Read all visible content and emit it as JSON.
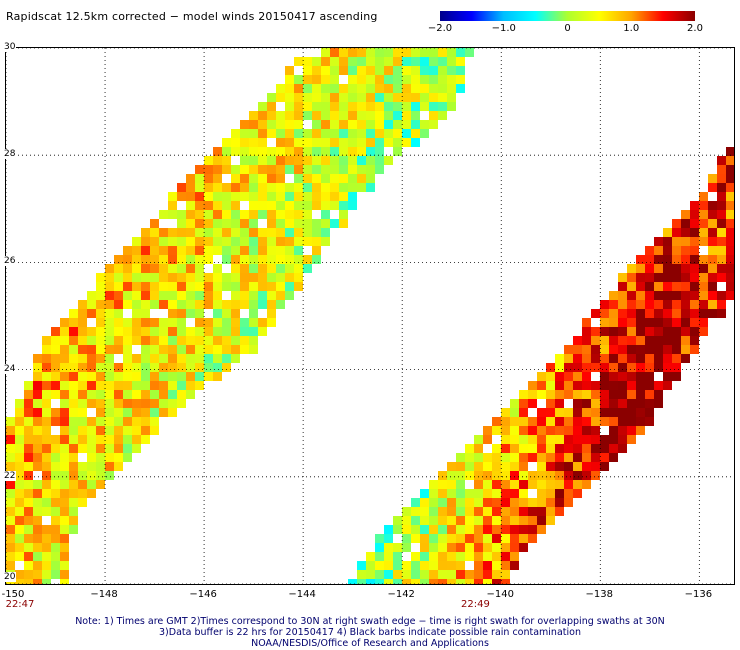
{
  "title": "Rapidscat 12.5km corrected − model winds 20150417 ascending",
  "colorbar": {
    "labels": [
      "−2.0",
      "−1.0",
      "0",
      "1.0",
      "2.0"
    ],
    "values": [
      -2.0,
      -1.0,
      0,
      1.0,
      2.0
    ],
    "stops": [
      "#00008b",
      "#0000ff",
      "#00bfff",
      "#00ffff",
      "#adff2f",
      "#ffff00",
      "#ffa500",
      "#ff0000",
      "#8b0000"
    ]
  },
  "axes": {
    "lat_labels": [
      "30",
      "28",
      "26",
      "24",
      "22",
      "20"
    ],
    "lat_values": [
      30,
      28,
      26,
      24,
      22,
      20
    ],
    "lon_labels": [
      "-150",
      "−148",
      "−146",
      "−144",
      "−142",
      "−140",
      "−138",
      "−136"
    ],
    "lon_values": [
      -150,
      -148,
      -146,
      -144,
      -142,
      -140,
      -138,
      -136
    ],
    "lon_range": [
      -150,
      -135.3
    ],
    "lat_range": [
      20,
      30
    ],
    "grid": true
  },
  "swath_times": [
    {
      "label": "22:47",
      "lon": -150
    },
    {
      "label": "22:49",
      "lon": -140.5
    }
  ],
  "notes": [
    "Note: 1) Times are GMT 2)Times correspond to 30N at right swath edge − time is right swath for overlapping swaths at 30N",
    "3)Data buffer is 22 hrs for 20150417 4) Black barbs indicate possible rain contamination",
    "NOAA/NESDIS/Office of Research and Applications"
  ]
}
